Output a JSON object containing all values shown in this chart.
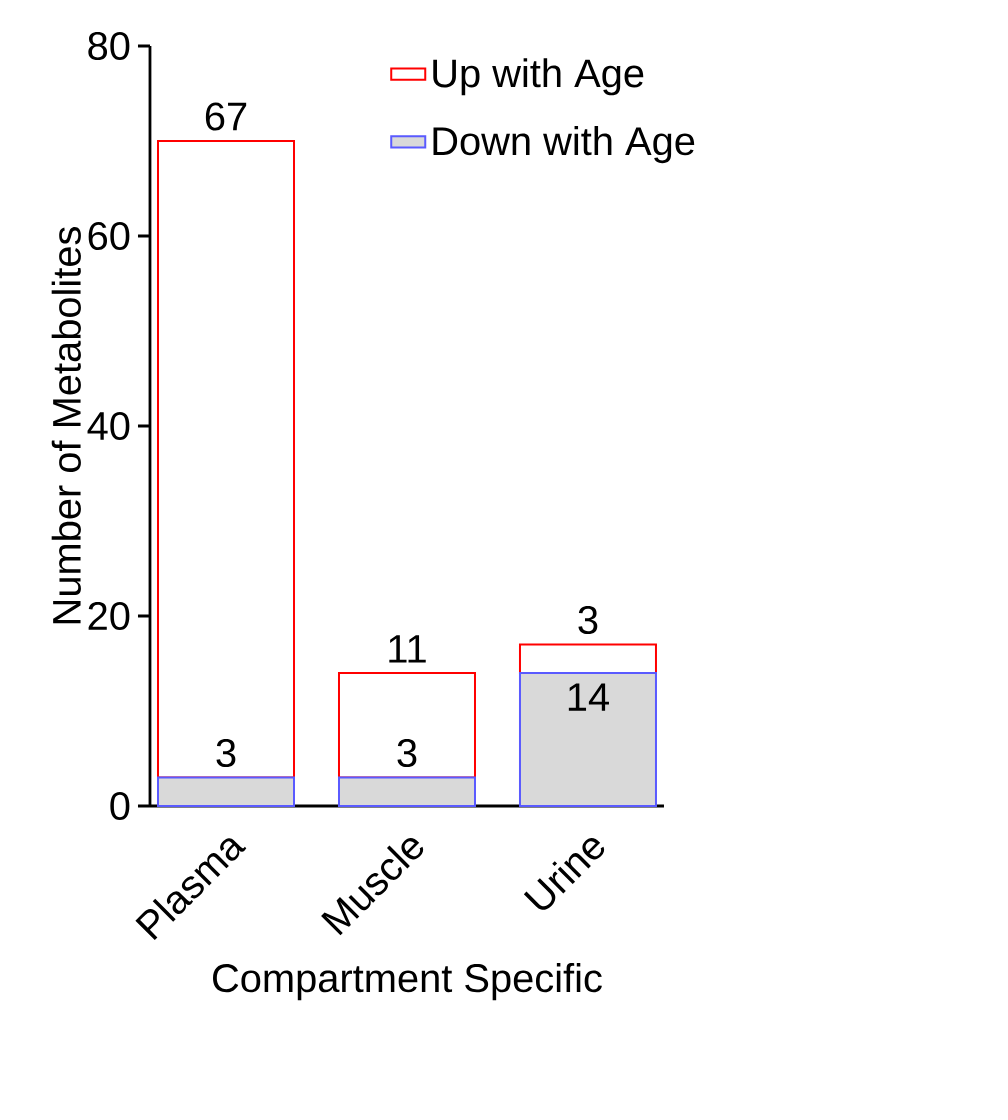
{
  "chart_data": {
    "type": "bar",
    "stacked": true,
    "xlabel": "Compartment Specific",
    "ylabel": "Number of Metabolites",
    "categories": [
      "Plasma",
      "Muscle",
      "Urine"
    ],
    "series": [
      {
        "name": "Down with Age",
        "color": "#d9d9d9",
        "values": [
          3,
          3,
          14
        ]
      },
      {
        "name": "Up with Age",
        "color": "#ff0000",
        "values": [
          67,
          11,
          3
        ]
      }
    ],
    "ylim": [
      0,
      80
    ],
    "yticks": [
      0,
      20,
      40,
      60,
      80
    ],
    "data_labels": true,
    "legend": "top right",
    "grid": false
  }
}
